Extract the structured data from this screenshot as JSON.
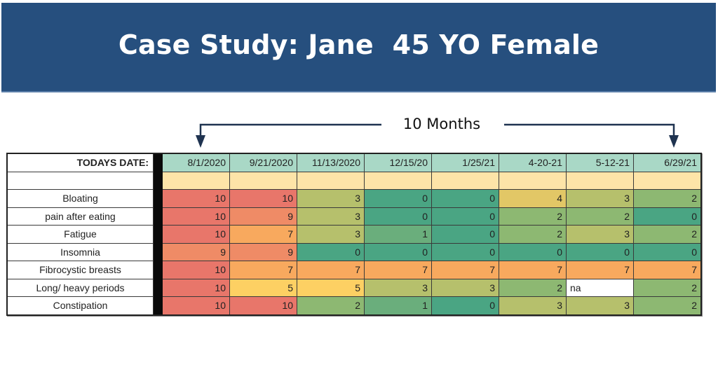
{
  "slide": {
    "title": "Case Study: Jane  45 YO Female",
    "span_label": "10 Months"
  },
  "table": {
    "header_label": "TODAYS DATE:",
    "dates": [
      "8/1/2020",
      "9/21/2020",
      "11/13/2020",
      "12/15/20",
      "1/25/21",
      "4-20-21",
      "5-12-21",
      "6/29/21"
    ],
    "rows": [
      {
        "symptom": "Bloating",
        "values": [
          "10",
          "10",
          "3",
          "0",
          "0",
          "4",
          "3",
          "2"
        ]
      },
      {
        "symptom": "pain after eating",
        "values": [
          "10",
          "9",
          "3",
          "0",
          "0",
          "2",
          "2",
          "0"
        ]
      },
      {
        "symptom": "Fatigue",
        "values": [
          "10",
          "7",
          "3",
          "1",
          "0",
          "2",
          "3",
          "2"
        ]
      },
      {
        "symptom": "Insomnia",
        "values": [
          "9",
          "9",
          "0",
          "0",
          "0",
          "0",
          "0",
          "0"
        ]
      },
      {
        "symptom": "Fibrocystic breasts",
        "values": [
          "10",
          "7",
          "7",
          "7",
          "7",
          "7",
          "7",
          "7"
        ]
      },
      {
        "symptom": "Long/ heavy periods",
        "values": [
          "10",
          "5",
          "5",
          "3",
          "3",
          "2",
          "na",
          "2"
        ]
      },
      {
        "symptom": "Constipation",
        "values": [
          "10",
          "10",
          "2",
          "1",
          "0",
          "3",
          "3",
          "2"
        ]
      }
    ]
  },
  "colors": {
    "banner": "#264f7e",
    "date_header": "#a9d8c6",
    "blank_row": "#fde4a8",
    "scale": {
      "0": "#4aa583",
      "1": "#6aae7c",
      "2": "#8db872",
      "3": "#b6c06c",
      "4": "#e2c766",
      "5": "#fdd063",
      "7": "#f8a95e",
      "9": "#ef8b66",
      "10": "#e8766a"
    }
  }
}
